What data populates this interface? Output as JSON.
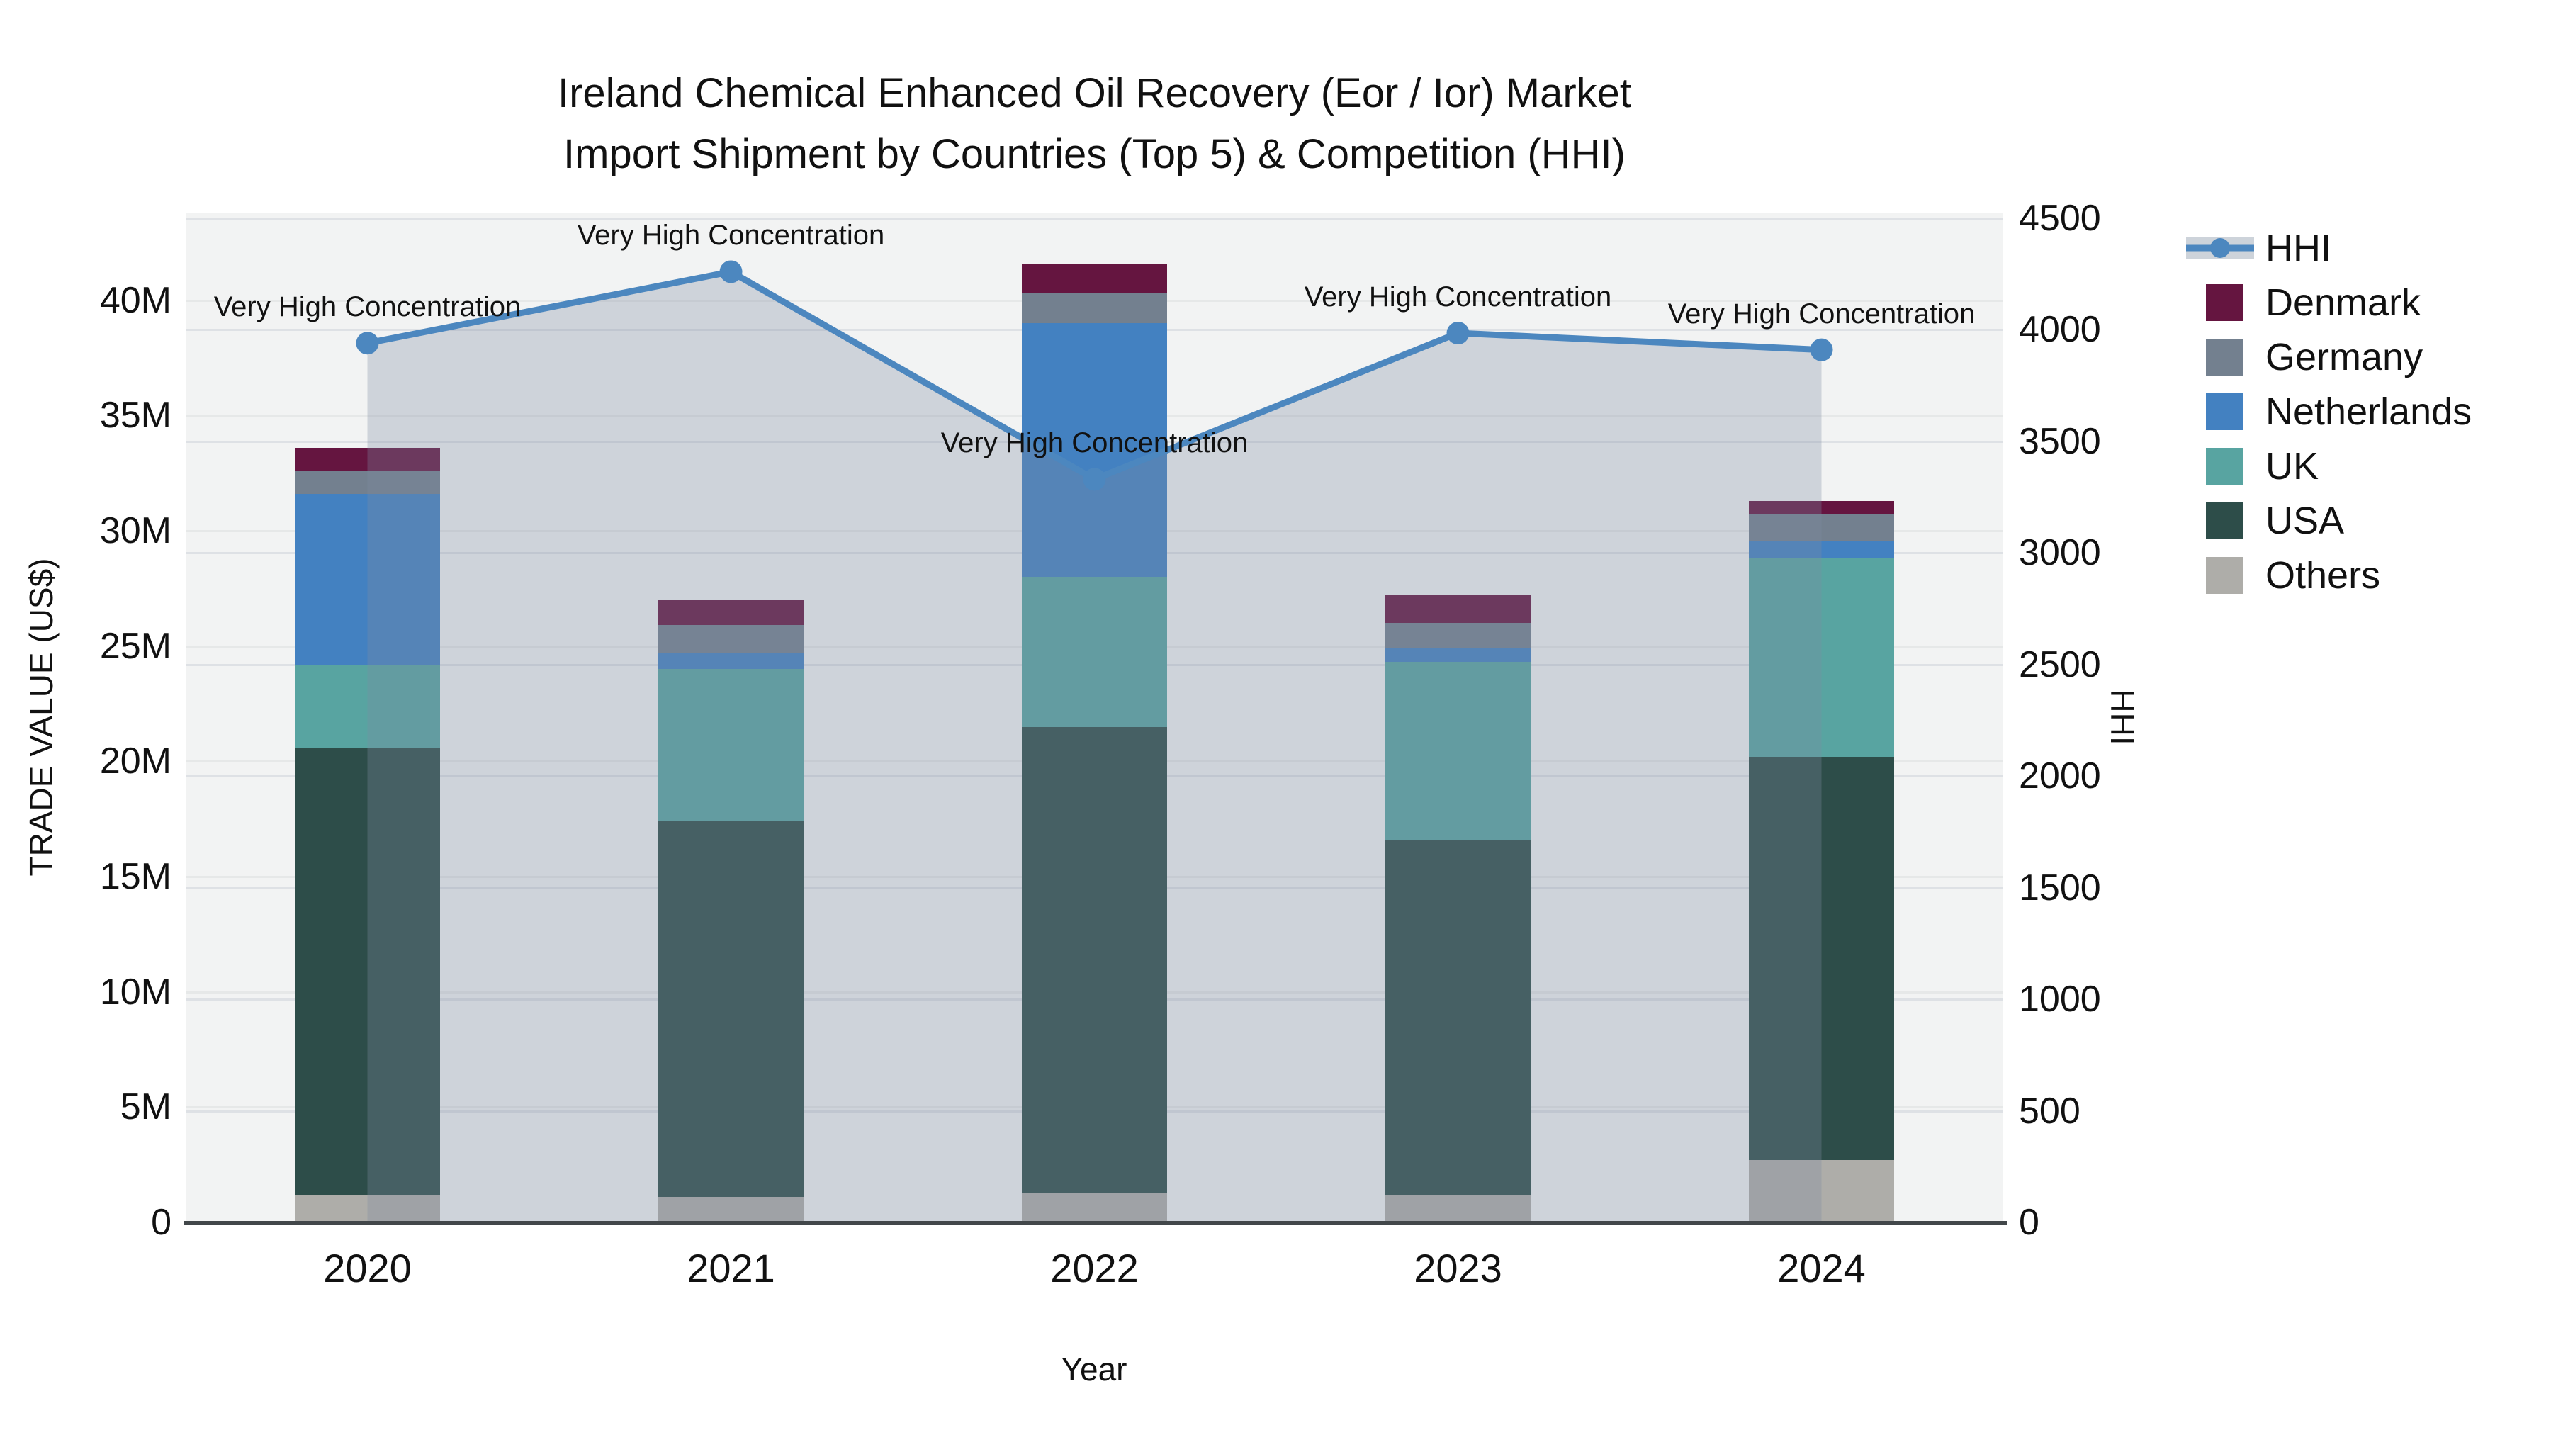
{
  "title": {
    "line1": "Ireland Chemical Enhanced Oil Recovery (Eor / Ior) Market",
    "line2": "Import Shipment by Countries (Top 5) & Competition (HHI)"
  },
  "chart_data": {
    "type": "stacked-bar+line",
    "categories": [
      "2020",
      "2021",
      "2022",
      "2023",
      "2024"
    ],
    "unit": "US$ millions",
    "series": [
      {
        "name": "Others",
        "color": "#aeada9",
        "values": [
          1.2,
          1.1,
          1.25,
          1.2,
          2.7
        ]
      },
      {
        "name": "USA",
        "color": "#2d4d49",
        "values": [
          19.4,
          16.3,
          20.25,
          15.4,
          17.5
        ]
      },
      {
        "name": "UK",
        "color": "#58a4a1",
        "values": [
          3.6,
          6.6,
          6.5,
          7.7,
          8.6
        ]
      },
      {
        "name": "Netherlands",
        "color": "#4381c1",
        "values": [
          7.4,
          0.7,
          11.0,
          0.6,
          0.75
        ]
      },
      {
        "name": "Germany",
        "color": "#73808f",
        "values": [
          1.0,
          1.2,
          1.3,
          1.1,
          1.15
        ]
      },
      {
        "name": "Denmark",
        "color": "#651540",
        "values": [
          1.0,
          1.1,
          1.3,
          1.2,
          0.6
        ]
      }
    ],
    "bar_totals": [
      33.6,
      27.0,
      41.6,
      27.2,
      31.3
    ],
    "line": {
      "name": "HHI",
      "color": "#4c87bf",
      "fill": "rgba(125,140,160,0.31)",
      "values": [
        3940,
        4260,
        3330,
        3985,
        3910
      ]
    },
    "annotations": [
      {
        "text": "Very High Concentration",
        "category": "2020"
      },
      {
        "text": "Very High Concentration",
        "category": "2021"
      },
      {
        "text": "Very High Concentration",
        "category": "2022"
      },
      {
        "text": "Very High Concentration",
        "category": "2023"
      },
      {
        "text": "Very High Concentration",
        "category": "2024"
      }
    ],
    "axes": {
      "left": {
        "title": "TRADE VALUE (US$)",
        "max": 43.8,
        "ticks": [
          {
            "label": "0",
            "value": 0
          },
          {
            "label": "5M",
            "value": 5
          },
          {
            "label": "10M",
            "value": 10
          },
          {
            "label": "15M",
            "value": 15
          },
          {
            "label": "20M",
            "value": 20
          },
          {
            "label": "25M",
            "value": 25
          },
          {
            "label": "30M",
            "value": 30
          },
          {
            "label": "35M",
            "value": 35
          },
          {
            "label": "40M",
            "value": 40
          }
        ]
      },
      "right": {
        "title": "HHI",
        "max": 4525,
        "ticks": [
          {
            "label": "0",
            "value": 0
          },
          {
            "label": "500",
            "value": 500
          },
          {
            "label": "1000",
            "value": 1000
          },
          {
            "label": "1500",
            "value": 1500
          },
          {
            "label": "2000",
            "value": 2000
          },
          {
            "label": "2500",
            "value": 2500
          },
          {
            "label": "3000",
            "value": 3000
          },
          {
            "label": "3500",
            "value": 3500
          },
          {
            "label": "4000",
            "value": 4000
          },
          {
            "label": "4500",
            "value": 4500
          }
        ]
      },
      "x": {
        "title": "Year"
      }
    },
    "legend": [
      {
        "name": "HHI",
        "type": "line",
        "color": "#4c87bf"
      },
      {
        "name": "Denmark",
        "type": "swatch",
        "color": "#651540"
      },
      {
        "name": "Germany",
        "type": "swatch",
        "color": "#73808f"
      },
      {
        "name": "Netherlands",
        "type": "swatch",
        "color": "#4381c1"
      },
      {
        "name": "UK",
        "type": "swatch",
        "color": "#58a4a1"
      },
      {
        "name": "USA",
        "type": "swatch",
        "color": "#2d4d49"
      },
      {
        "name": "Others",
        "type": "swatch",
        "color": "#aeada9"
      }
    ],
    "layout": {
      "plot_bg": "#f2f3f3",
      "grid_left_color": "#e6e8e8",
      "grid_right_color": "#dee1e5",
      "axis_line_color": "#42474a"
    }
  }
}
